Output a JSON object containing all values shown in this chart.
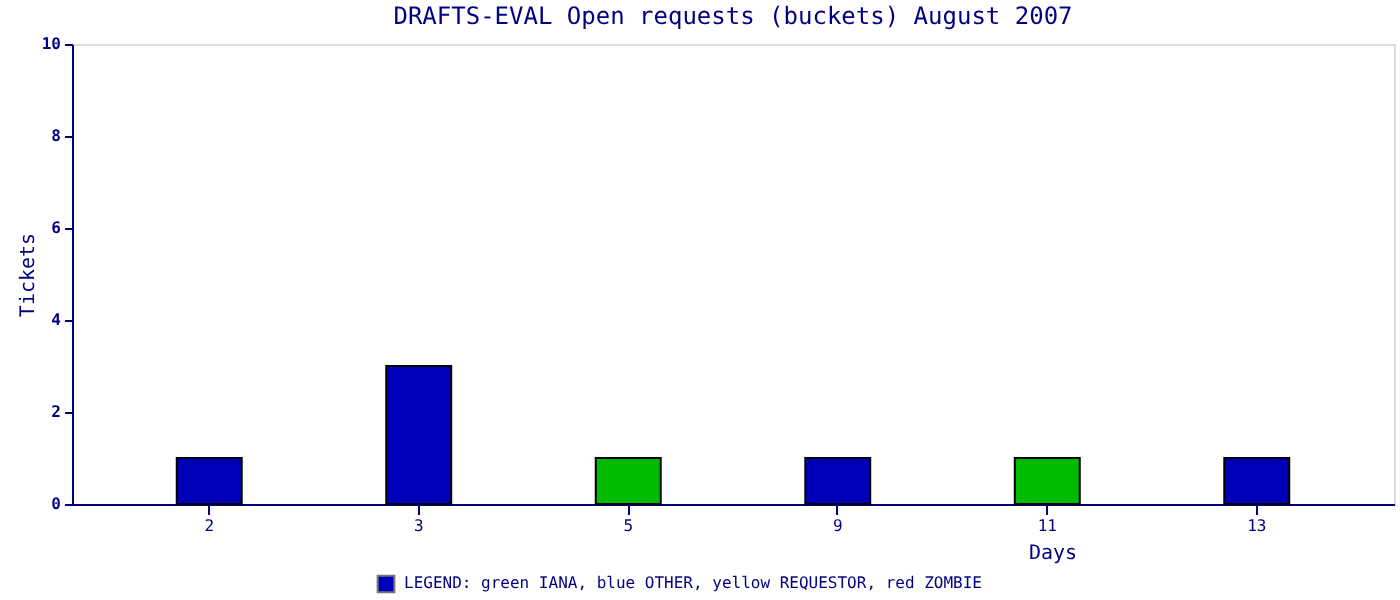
{
  "chart_data": {
    "type": "bar",
    "title": "DRAFTS-EVAL Open requests (buckets) August 2007",
    "xlabel": "Days",
    "ylabel": "Tickets",
    "categories": [
      "2",
      "3",
      "5",
      "9",
      "11",
      "13"
    ],
    "series": [
      {
        "name": "LEGEND: green IANA, blue OTHER, yellow REQUESTOR, red ZOMBIE",
        "color": "#0000bb",
        "values": [
          1,
          3,
          null,
          1,
          null,
          1
        ]
      },
      {
        "color": "#00bb00",
        "values": [
          null,
          null,
          1,
          null,
          1,
          null
        ]
      }
    ],
    "ylim": [
      0,
      10
    ],
    "yticks": [
      0,
      2,
      4,
      6,
      8,
      10
    ],
    "grid": false,
    "legend": "bottom"
  }
}
